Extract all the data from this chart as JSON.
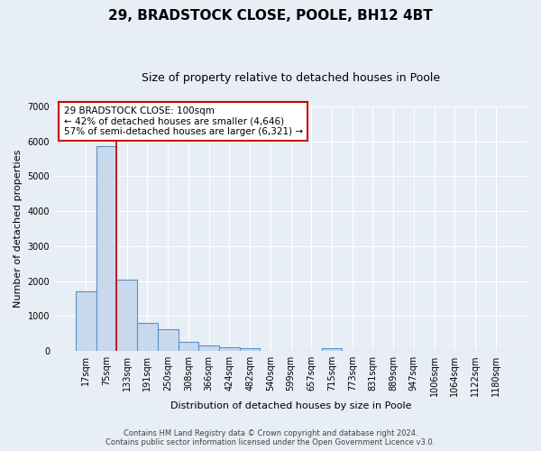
{
  "title": "29, BRADSTOCK CLOSE, POOLE, BH12 4BT",
  "subtitle": "Size of property relative to detached houses in Poole",
  "xlabel": "Distribution of detached houses by size in Poole",
  "ylabel": "Number of detached properties",
  "footer_line1": "Contains HM Land Registry data © Crown copyright and database right 2024.",
  "footer_line2": "Contains public sector information licensed under the Open Government Licence v3.0.",
  "annotation_line1": "29 BRADSTOCK CLOSE: 100sqm",
  "annotation_line2": "← 42% of detached houses are smaller (4,646)",
  "annotation_line3": "57% of semi-detached houses are larger (6,321) →",
  "bar_labels": [
    "17sqm",
    "75sqm",
    "133sqm",
    "191sqm",
    "250sqm",
    "308sqm",
    "366sqm",
    "424sqm",
    "482sqm",
    "540sqm",
    "599sqm",
    "657sqm",
    "715sqm",
    "773sqm",
    "831sqm",
    "889sqm",
    "947sqm",
    "1006sqm",
    "1064sqm",
    "1122sqm",
    "1180sqm"
  ],
  "bar_values": [
    1700,
    5850,
    2050,
    800,
    620,
    270,
    160,
    115,
    70,
    0,
    0,
    0,
    70,
    0,
    0,
    0,
    0,
    0,
    0,
    0,
    0
  ],
  "bar_color": "#c9d9ed",
  "bar_edge_color": "#5b8fc9",
  "red_line_x": 1.5,
  "ylim": [
    0,
    7000
  ],
  "yticks": [
    0,
    1000,
    2000,
    3000,
    4000,
    5000,
    6000,
    7000
  ],
  "background_color": "#e8eef5",
  "axes_bg_color": "#e8eef5",
  "grid_color": "#ffffff",
  "annotation_box_facecolor": "#ffffff",
  "annotation_box_edgecolor": "#cc0000",
  "red_line_color": "#cc0000",
  "title_fontsize": 11,
  "subtitle_fontsize": 9,
  "axis_label_fontsize": 8,
  "tick_fontsize": 7,
  "annotation_fontsize": 7.5,
  "footer_fontsize": 6
}
